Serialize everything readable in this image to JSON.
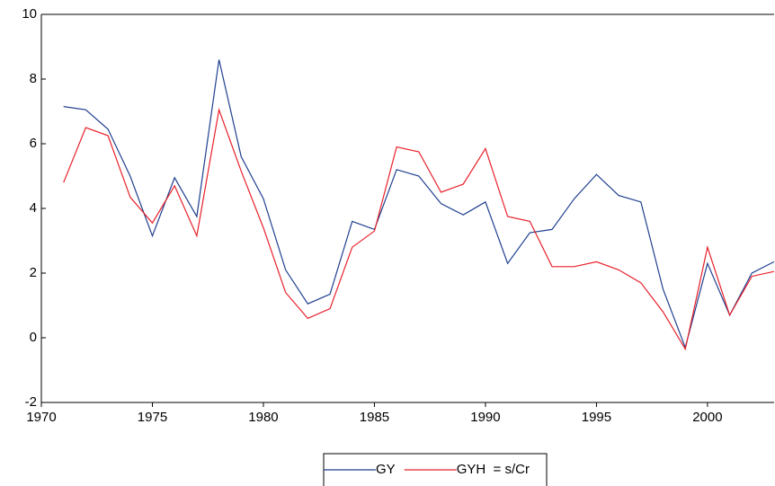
{
  "chart_data": {
    "type": "line",
    "x": [
      1971,
      1972,
      1973,
      1974,
      1975,
      1976,
      1977,
      1978,
      1979,
      1980,
      1981,
      1982,
      1983,
      1984,
      1985,
      1986,
      1987,
      1988,
      1989,
      1990,
      1991,
      1992,
      1993,
      1994,
      1995,
      1996,
      1997,
      1998,
      1999,
      2000,
      2001,
      2002,
      2003
    ],
    "series": [
      {
        "name": "GY",
        "color": "#1f3f8f",
        "values": [
          7.15,
          7.05,
          6.45,
          5.0,
          3.15,
          4.95,
          3.75,
          8.6,
          5.6,
          4.3,
          2.1,
          1.05,
          1.35,
          3.6,
          3.35,
          5.2,
          5.0,
          4.15,
          3.8,
          4.2,
          2.3,
          3.25,
          3.35,
          4.3,
          5.05,
          4.4,
          4.2,
          1.5,
          -0.3,
          2.3,
          0.7,
          2.0,
          2.35
        ]
      },
      {
        "name": "GYH  = s/Cr",
        "color": "#e8202a",
        "values": [
          4.8,
          6.5,
          6.25,
          4.35,
          3.55,
          4.7,
          3.15,
          7.05,
          5.15,
          3.4,
          1.4,
          0.6,
          0.9,
          2.8,
          3.3,
          5.9,
          5.75,
          4.5,
          4.75,
          5.85,
          3.75,
          3.6,
          2.2,
          2.2,
          2.35,
          2.1,
          1.7,
          0.8,
          -0.35,
          2.8,
          0.7,
          1.9,
          2.05
        ]
      }
    ],
    "xlim": [
      1970,
      2003
    ],
    "xticks": [
      1970,
      1975,
      1980,
      1985,
      1990,
      1995,
      2000
    ],
    "ylim": [
      -2,
      10
    ],
    "yticks": [
      -2,
      0,
      2,
      4,
      6,
      8,
      10
    ]
  }
}
